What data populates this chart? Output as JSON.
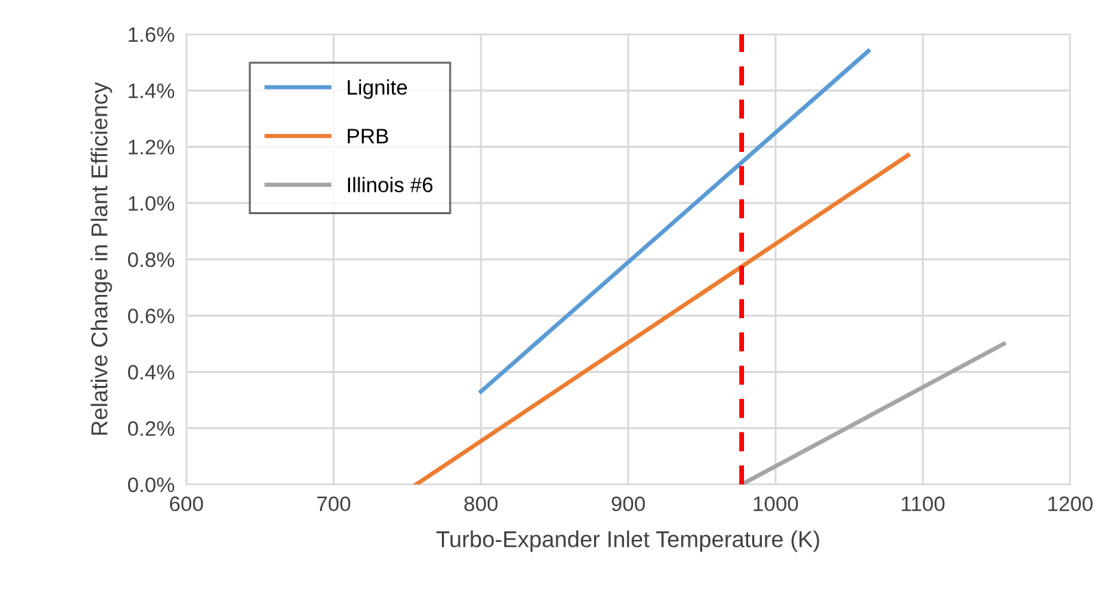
{
  "chart_data": {
    "type": "line",
    "xlabel": "Turbo-Expander Inlet Temperature (K)",
    "ylabel": "Relative Change in Plant Efficiency",
    "series": [
      {
        "name": "Lignite",
        "color": "#5b9bd5",
        "x": [
          800,
          1063
        ],
        "values": [
          0.33,
          1.54
        ]
      },
      {
        "name": "PRB",
        "color": "#ed7d31",
        "x": [
          756,
          1090
        ],
        "values": [
          0.0,
          1.17
        ]
      },
      {
        "name": "Illinois #6",
        "color": "#a5a5a5",
        "x": [
          977,
          1155
        ],
        "values": [
          0.0,
          0.5
        ]
      }
    ],
    "xlim": [
      600,
      1200
    ],
    "xticks": [
      600,
      700,
      800,
      900,
      1000,
      1100,
      1200
    ],
    "ylim": [
      0,
      1.6
    ],
    "yticks": [
      {
        "value": 0,
        "label": "0.0%"
      },
      {
        "value": 0.2,
        "label": "0.2%"
      },
      {
        "value": 0.4,
        "label": "0.4%"
      },
      {
        "value": 0.6,
        "label": "0.6%"
      },
      {
        "value": 0.8,
        "label": "0.8%"
      },
      {
        "value": 1.0,
        "label": "1.0%"
      },
      {
        "value": 1.2,
        "label": "1.2%"
      },
      {
        "value": 1.4,
        "label": "1.4%"
      },
      {
        "value": 1.6,
        "label": "1.6%"
      }
    ],
    "ref_lines": [
      {
        "axis": "x",
        "value": 977,
        "color": "#ff0000",
        "line_style": "dashed"
      }
    ],
    "grid": true,
    "legend": "top left",
    "marker": "none",
    "line_style": "solid"
  }
}
